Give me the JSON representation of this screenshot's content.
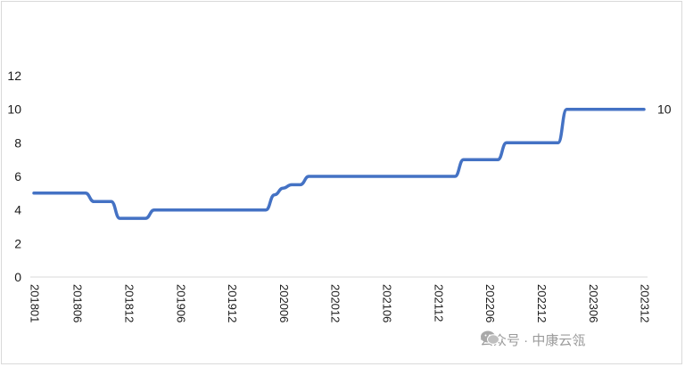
{
  "chart_data": {
    "type": "line",
    "title": "",
    "xlabel": "",
    "ylabel": "",
    "ylim": [
      0,
      12
    ],
    "yticks": [
      0,
      2,
      4,
      6,
      8,
      10,
      12
    ],
    "grid": false,
    "x_tick_labels": [
      "201801",
      "201806",
      "201812",
      "201906",
      "201912",
      "202006",
      "202012",
      "202106",
      "202112",
      "202206",
      "202212",
      "202306",
      "202312"
    ],
    "x_tick_index": [
      0,
      5,
      11,
      17,
      23,
      29,
      35,
      41,
      47,
      53,
      59,
      65,
      71
    ],
    "series": [
      {
        "name": "",
        "color": "#4472C4",
        "x_index": [
          0,
          6,
          7,
          8,
          9,
          10,
          11,
          12,
          13,
          14,
          15,
          16,
          17,
          18,
          19,
          20,
          21,
          22,
          23,
          24,
          25,
          26,
          27,
          28,
          29,
          30,
          31,
          32,
          33,
          34,
          35,
          36,
          37,
          38,
          39,
          40,
          41,
          42,
          43,
          44,
          45,
          46,
          47,
          48,
          49,
          50,
          51,
          52,
          53,
          54,
          55,
          56,
          57,
          58,
          59,
          60,
          61,
          62,
          63,
          64,
          65,
          66,
          67,
          68,
          69,
          70,
          71
        ],
        "values": [
          5,
          5,
          4.5,
          4.5,
          4.5,
          3.5,
          3.5,
          3.5,
          3.5,
          4,
          4,
          4,
          4,
          4,
          4,
          4,
          4,
          4,
          4,
          4,
          4,
          4,
          4,
          4.9,
          5.3,
          5.5,
          5.5,
          6,
          6,
          6,
          6,
          6,
          6,
          6,
          6,
          6,
          6,
          6,
          6,
          6,
          6,
          6,
          6,
          6,
          6,
          7,
          7,
          7,
          7,
          7,
          8,
          8,
          8,
          8,
          8,
          8,
          8,
          10,
          10,
          10,
          10,
          10,
          10,
          10,
          10,
          10,
          10
        ]
      }
    ],
    "end_label": "10"
  },
  "watermark": {
    "text": "公众号 · 中康云瓴",
    "icon": "wechat-icon"
  }
}
